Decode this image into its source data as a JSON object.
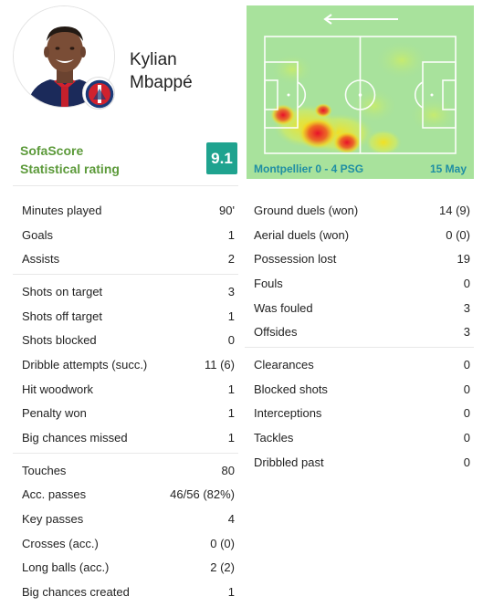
{
  "player": {
    "name": "Kylian Mbappé",
    "name_line1": "Kylian",
    "name_line2": "Mbappé",
    "photo_icon": "player-portrait",
    "club_badge_icon": "psg-crest"
  },
  "rating": {
    "label_line1": "SofaScore",
    "label_line2": "Statistical rating",
    "value": "9.1",
    "badge_color": "#1fa38f"
  },
  "heatmap": {
    "direction_icon": "arrow-left-icon",
    "match": "Montpellier 0 - 4 PSG",
    "date": "15 May"
  },
  "colors": {
    "accent_green": "#5c9a3a",
    "link_blue": "#1f8ea3",
    "pitch": "#a8e29c"
  },
  "stats_left": [
    [
      {
        "label": "Minutes played",
        "value": "90'"
      },
      {
        "label": "Goals",
        "value": "1"
      },
      {
        "label": "Assists",
        "value": "2"
      }
    ],
    [
      {
        "label": "Shots on target",
        "value": "3"
      },
      {
        "label": "Shots off target",
        "value": "1"
      },
      {
        "label": "Shots blocked",
        "value": "0"
      },
      {
        "label": "Dribble attempts (succ.)",
        "value": "11 (6)"
      },
      {
        "label": "Hit woodwork",
        "value": "1"
      },
      {
        "label": "Penalty won",
        "value": "1"
      },
      {
        "label": "Big chances missed",
        "value": "1"
      }
    ],
    [
      {
        "label": "Touches",
        "value": "80"
      },
      {
        "label": "Acc. passes",
        "value": "46/56 (82%)"
      },
      {
        "label": "Key passes",
        "value": "4"
      },
      {
        "label": "Crosses (acc.)",
        "value": "0 (0)"
      },
      {
        "label": "Long balls (acc.)",
        "value": "2 (2)"
      },
      {
        "label": "Big chances created",
        "value": "1"
      }
    ]
  ],
  "stats_right": [
    [
      {
        "label": "Ground duels (won)",
        "value": "14 (9)"
      },
      {
        "label": "Aerial duels (won)",
        "value": "0 (0)"
      },
      {
        "label": "Possession lost",
        "value": "19"
      },
      {
        "label": "Fouls",
        "value": "0"
      },
      {
        "label": "Was fouled",
        "value": "3"
      },
      {
        "label": "Offsides",
        "value": "3"
      }
    ],
    [
      {
        "label": "Clearances",
        "value": "0"
      },
      {
        "label": "Blocked shots",
        "value": "0"
      },
      {
        "label": "Interceptions",
        "value": "0"
      },
      {
        "label": "Tackles",
        "value": "0"
      },
      {
        "label": "Dribbled past",
        "value": "0"
      }
    ]
  ]
}
